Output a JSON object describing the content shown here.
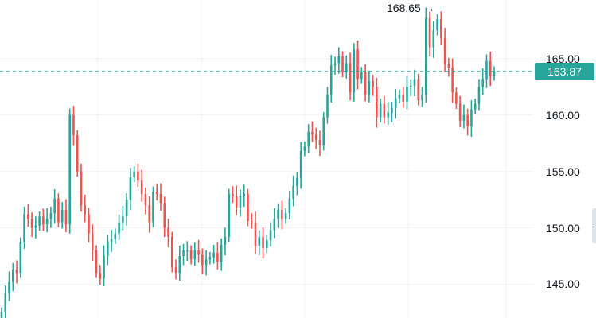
{
  "chart_data": {
    "type": "candlestick",
    "ylim": [
      142.0,
      170.2
    ],
    "y_ticks": [
      "145.00",
      "150.00",
      "155.00",
      "160.00",
      "165.00"
    ],
    "y_tick_values": [
      145,
      150,
      155,
      160,
      165
    ],
    "grid": true,
    "last_price": "163.87",
    "last_price_value": 163.87,
    "max_label": "168.65",
    "max_arrow": "→",
    "colors": {
      "up": "#26a69a",
      "down": "#ef5350",
      "last_price": "#26a69a",
      "grid": "#f0f3fa"
    },
    "closes": [
      142.5,
      144.2,
      145.2,
      146.3,
      146.0,
      148.7,
      151.2,
      150.8,
      150.0,
      150.2,
      151.0,
      150.3,
      150.8,
      151.3,
      152.6,
      150.5,
      151.6,
      150.3,
      160.0,
      158.2,
      155.0,
      152.0,
      151.2,
      149.5,
      148.0,
      146.0,
      145.5,
      147.5,
      148.8,
      149.0,
      149.5,
      150.5,
      151.0,
      152.5,
      154.5,
      155.0,
      154.2,
      153.0,
      152.0,
      150.5,
      153.2,
      153.0,
      152.2,
      150.0,
      149.2,
      146.5,
      146.0,
      147.5,
      148.0,
      148.0,
      147.2,
      148.0,
      147.6,
      146.7,
      147.2,
      147.4,
      147.8,
      147.0,
      148.5,
      149.2,
      153.0,
      152.8,
      151.8,
      152.8,
      153.0,
      150.6,
      150.5,
      148.4,
      149.2,
      148.2,
      148.9,
      149.8,
      150.8,
      151.6,
      150.8,
      151.3,
      152.6,
      153.7,
      154.4,
      156.8,
      157.2,
      158.5,
      158.3,
      157.8,
      157.3,
      159.8,
      161.8,
      164.4,
      164.6,
      165.2,
      163.8,
      164.6,
      162.0,
      165.8,
      163.2,
      163.8,
      161.8,
      163.0,
      162.5,
      159.8,
      161.0,
      159.8,
      160.2,
      160.6,
      161.5,
      161.8,
      161.2,
      162.5,
      162.6,
      163.2,
      161.3,
      161.8,
      168.6,
      166.0,
      167.5,
      168.5,
      166.8,
      164.5,
      164.2,
      162.0,
      161.0,
      159.5,
      160.0,
      159.0,
      160.5,
      161.0,
      162.5,
      163.2,
      164.8,
      163.5,
      163.87
    ]
  }
}
